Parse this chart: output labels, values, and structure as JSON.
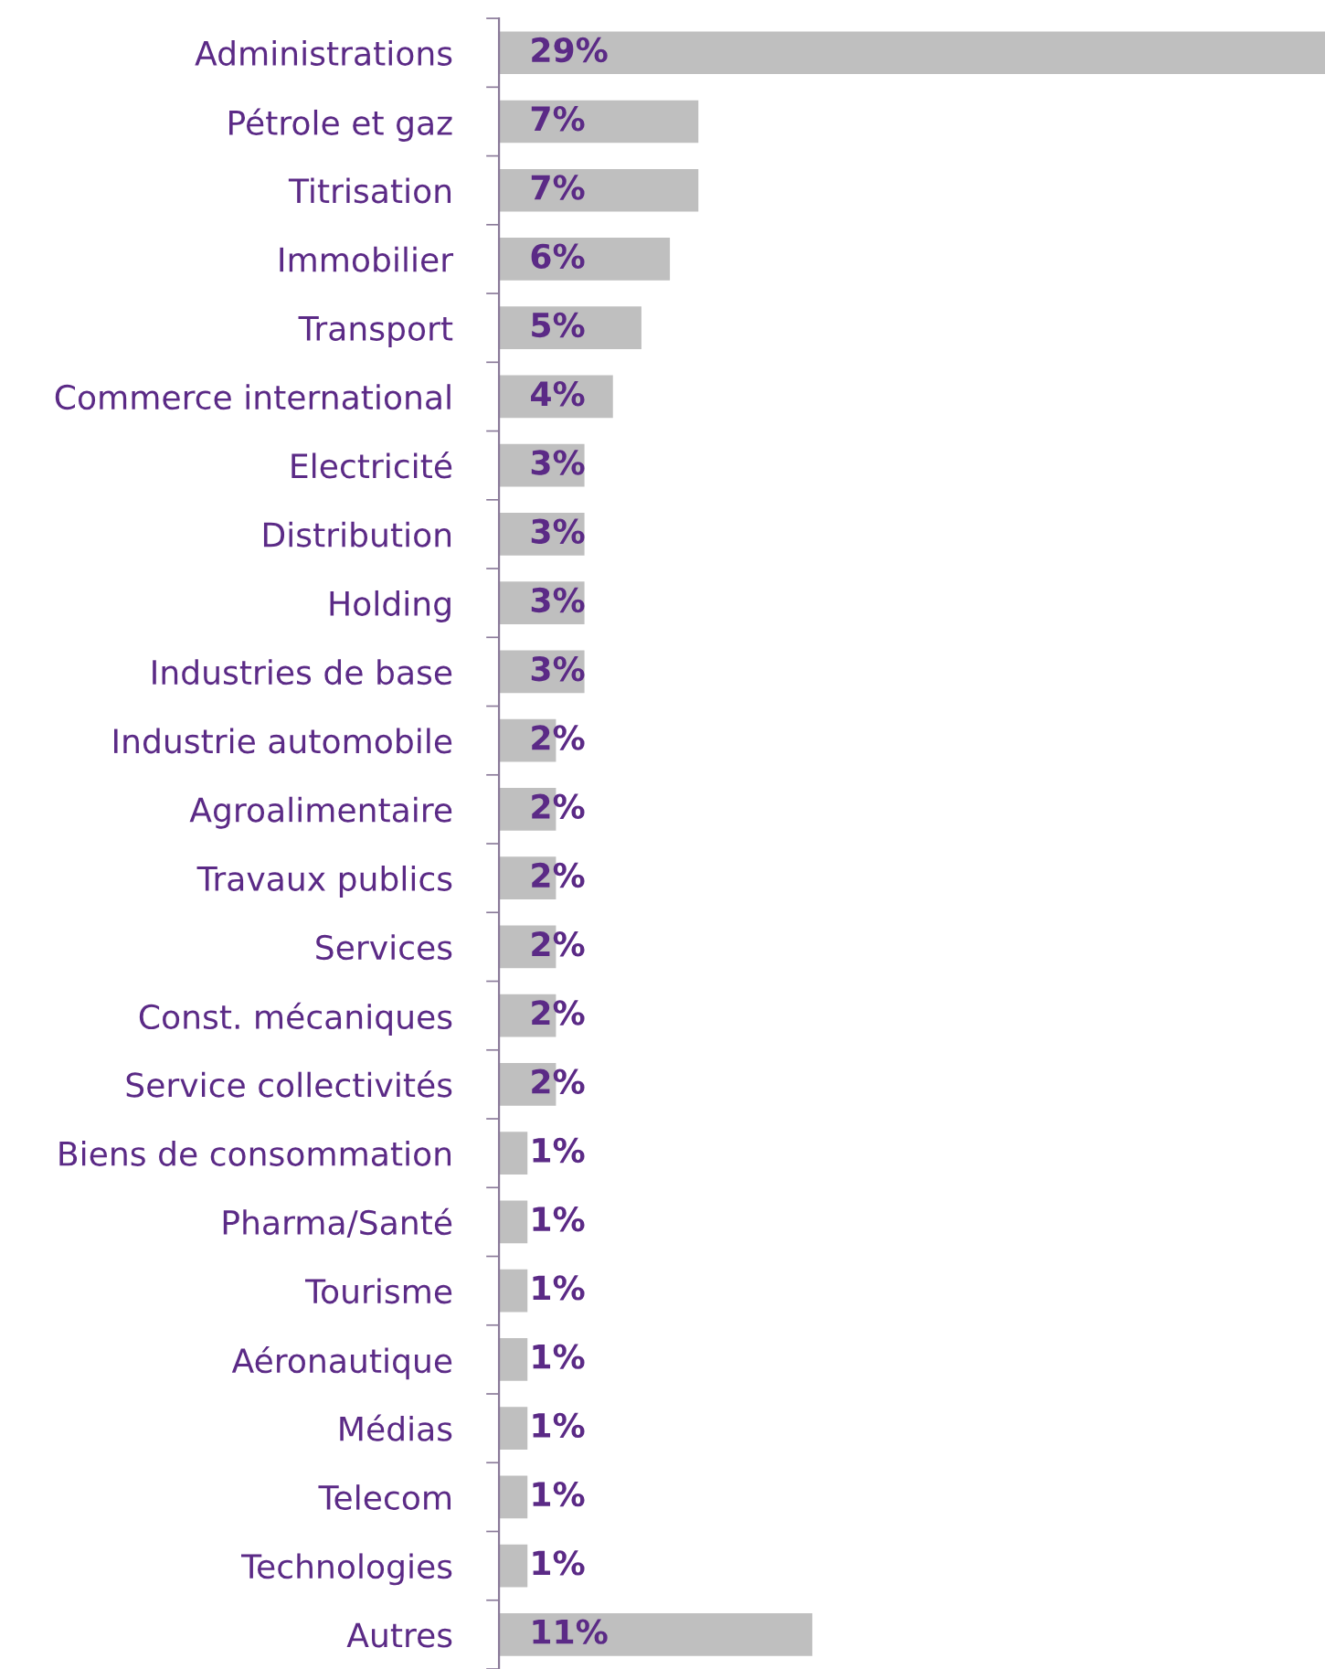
{
  "chart_data": {
    "type": "bar",
    "orientation": "horizontal",
    "categories": [
      "Administrations",
      "Pétrole et gaz",
      "Titrisation",
      "Immobilier",
      "Transport",
      "Commerce international",
      "Electricité",
      "Distribution",
      "Holding",
      "Industries de base",
      "Industrie automobile",
      "Agroalimentaire",
      "Travaux publics",
      "Services",
      "Const. mécaniques",
      "Service collectivités",
      "Biens de consommation",
      "Pharma/Santé",
      "Tourisme",
      "Aéronautique",
      "Médias",
      "Telecom",
      "Technologies",
      "Autres"
    ],
    "values": [
      29,
      7,
      7,
      6,
      5,
      4,
      3,
      3,
      3,
      3,
      2,
      2,
      2,
      2,
      2,
      2,
      1,
      1,
      1,
      1,
      1,
      1,
      1,
      11
    ],
    "value_labels": [
      "29%",
      "7%",
      "7%",
      "6%",
      "5%",
      "4%",
      "3%",
      "3%",
      "3%",
      "3%",
      "2%",
      "2%",
      "2%",
      "2%",
      "2%",
      "2%",
      "1%",
      "1%",
      "1%",
      "1%",
      "1%",
      "1%",
      "1%",
      "11%"
    ],
    "color": "#bfbfbf",
    "grid": false,
    "legend": false
  }
}
